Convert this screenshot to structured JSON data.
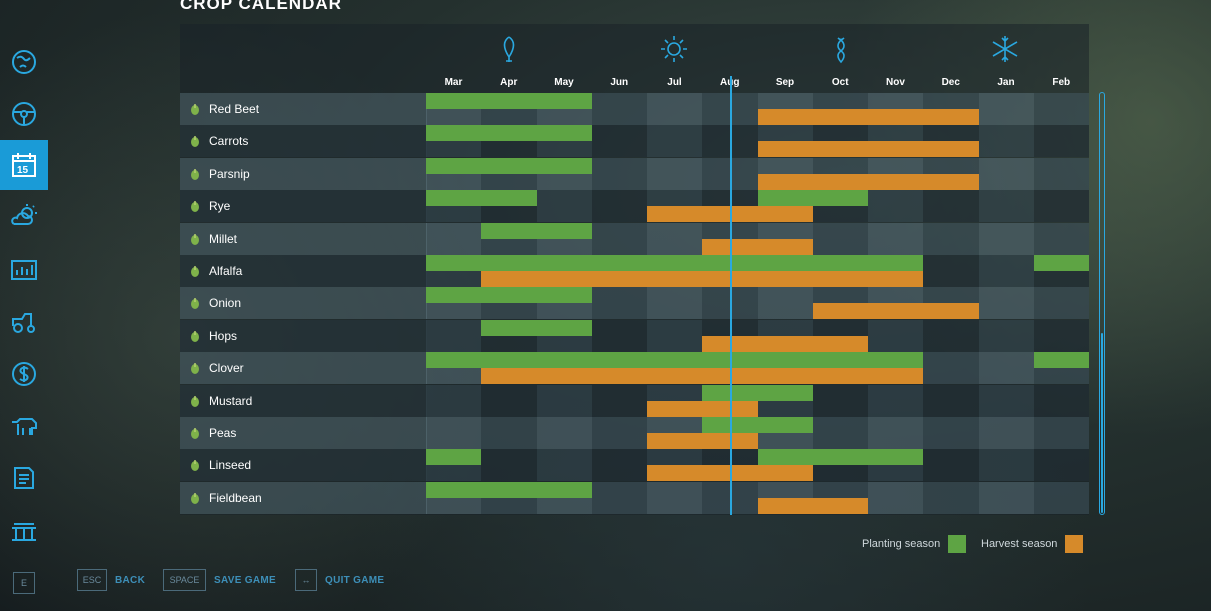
{
  "header": {
    "title": "CROP CALENDAR"
  },
  "sidebar": {
    "items": [
      {
        "icon": "map-icon"
      },
      {
        "icon": "steering-wheel-icon"
      },
      {
        "icon": "calendar-icon",
        "badge": "15",
        "active": true
      },
      {
        "icon": "weather-icon"
      },
      {
        "icon": "prices-icon"
      },
      {
        "icon": "vehicles-icon"
      },
      {
        "icon": "finances-icon"
      },
      {
        "icon": "animals-icon"
      },
      {
        "icon": "contracts-icon"
      },
      {
        "icon": "production-icon"
      },
      {
        "icon": "e-key-icon",
        "label": "E"
      }
    ]
  },
  "calendar": {
    "months": [
      "Mar",
      "Apr",
      "May",
      "Jun",
      "Jul",
      "Aug",
      "Sep",
      "Oct",
      "Nov",
      "Dec",
      "Jan",
      "Feb"
    ],
    "season_icons": [
      "spring-icon",
      "summer-icon",
      "autumn-icon",
      "winter-icon"
    ],
    "current_month_indicator": "Aug",
    "crops": [
      {
        "name": "Red Beet",
        "icon": "red-beet-icon",
        "plant": [
          [
            0,
            3
          ]
        ],
        "harvest": [
          [
            6,
            10
          ]
        ]
      },
      {
        "name": "Carrots",
        "icon": "carrot-icon",
        "plant": [
          [
            0,
            3
          ]
        ],
        "harvest": [
          [
            6,
            10
          ]
        ]
      },
      {
        "name": "Parsnip",
        "icon": "parsnip-icon",
        "plant": [
          [
            0,
            3
          ]
        ],
        "harvest": [
          [
            6,
            10
          ]
        ]
      },
      {
        "name": "Rye",
        "icon": "rye-icon",
        "plant": [
          [
            0,
            2
          ],
          [
            6,
            8
          ]
        ],
        "harvest": [
          [
            4,
            7
          ]
        ]
      },
      {
        "name": "Millet",
        "icon": "millet-icon",
        "plant": [
          [
            1,
            3
          ]
        ],
        "harvest": [
          [
            5,
            7
          ]
        ]
      },
      {
        "name": "Alfalfa",
        "icon": "alfalfa-icon",
        "plant": [
          [
            0,
            9
          ],
          [
            11,
            12
          ]
        ],
        "harvest": [
          [
            1,
            9
          ]
        ]
      },
      {
        "name": "Onion",
        "icon": "onion-icon",
        "plant": [
          [
            0,
            3
          ]
        ],
        "harvest": [
          [
            7,
            10
          ]
        ]
      },
      {
        "name": "Hops",
        "icon": "hops-icon",
        "plant": [
          [
            1,
            3
          ]
        ],
        "harvest": [
          [
            5,
            8
          ]
        ]
      },
      {
        "name": "Clover",
        "icon": "clover-icon",
        "plant": [
          [
            0,
            9
          ],
          [
            11,
            12
          ]
        ],
        "harvest": [
          [
            1,
            9
          ]
        ]
      },
      {
        "name": "Mustard",
        "icon": "mustard-icon",
        "plant": [
          [
            5,
            7
          ]
        ],
        "harvest": [
          [
            4,
            6
          ]
        ]
      },
      {
        "name": "Peas",
        "icon": "peas-icon",
        "plant": [
          [
            5,
            7
          ]
        ],
        "harvest": [
          [
            4,
            6
          ]
        ]
      },
      {
        "name": "Linseed",
        "icon": "linseed-icon",
        "plant": [
          [
            0,
            1
          ],
          [
            6,
            9
          ]
        ],
        "harvest": [
          [
            4,
            7
          ]
        ]
      },
      {
        "name": "Fieldbean",
        "icon": "fieldbean-icon",
        "plant": [
          [
            0,
            3
          ]
        ],
        "harvest": [
          [
            6,
            8
          ]
        ]
      }
    ]
  },
  "legend": {
    "planting_label": "Planting season",
    "harvest_label": "Harvest season",
    "planting_color": "#5ea444",
    "harvest_color": "#d68a2a"
  },
  "footer": {
    "buttons": [
      {
        "key": "ESC",
        "label": "BACK"
      },
      {
        "key": "SPACE",
        "label": "SAVE GAME"
      },
      {
        "key": "↔",
        "label": "QUIT GAME"
      }
    ]
  }
}
